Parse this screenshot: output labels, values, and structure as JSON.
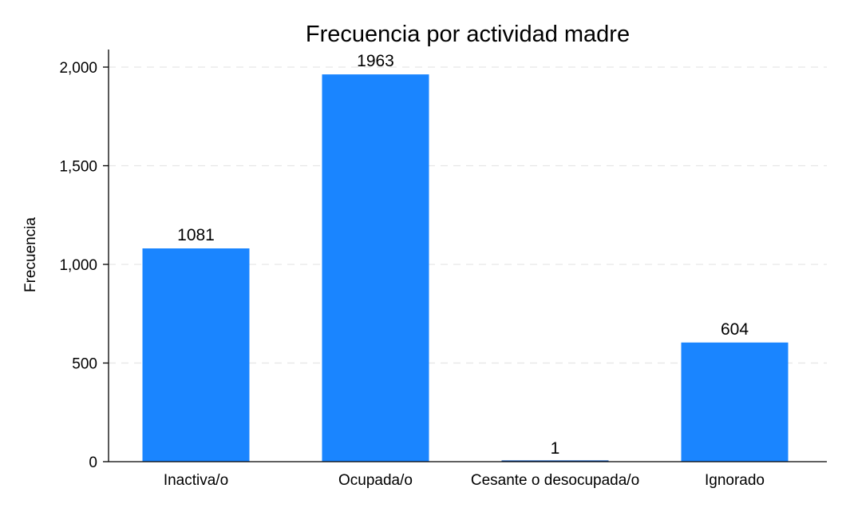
{
  "chart_data": {
    "type": "bar",
    "title": "Frecuencia por actividad madre",
    "ylabel": "Frecuencia",
    "xlabel": "",
    "categories": [
      "Inactiva/o",
      "Ocupada/o",
      "Cesante o desocupada/o",
      "Ignorado"
    ],
    "values": [
      1081,
      1963,
      1,
      604
    ],
    "data_labels": [
      "1081",
      "1963",
      "1",
      "604"
    ],
    "ylim": [
      0,
      2000
    ],
    "yticks": [
      0,
      500,
      1000,
      1500,
      2000
    ],
    "ytick_labels": [
      "0",
      "500",
      "1,000",
      "1,500",
      "2,000"
    ],
    "grid": true,
    "legend": "none",
    "colors": {
      "bar": "#1a85ff",
      "small_bar": "#0b4fb0",
      "grid": "#e6e6e6"
    }
  }
}
